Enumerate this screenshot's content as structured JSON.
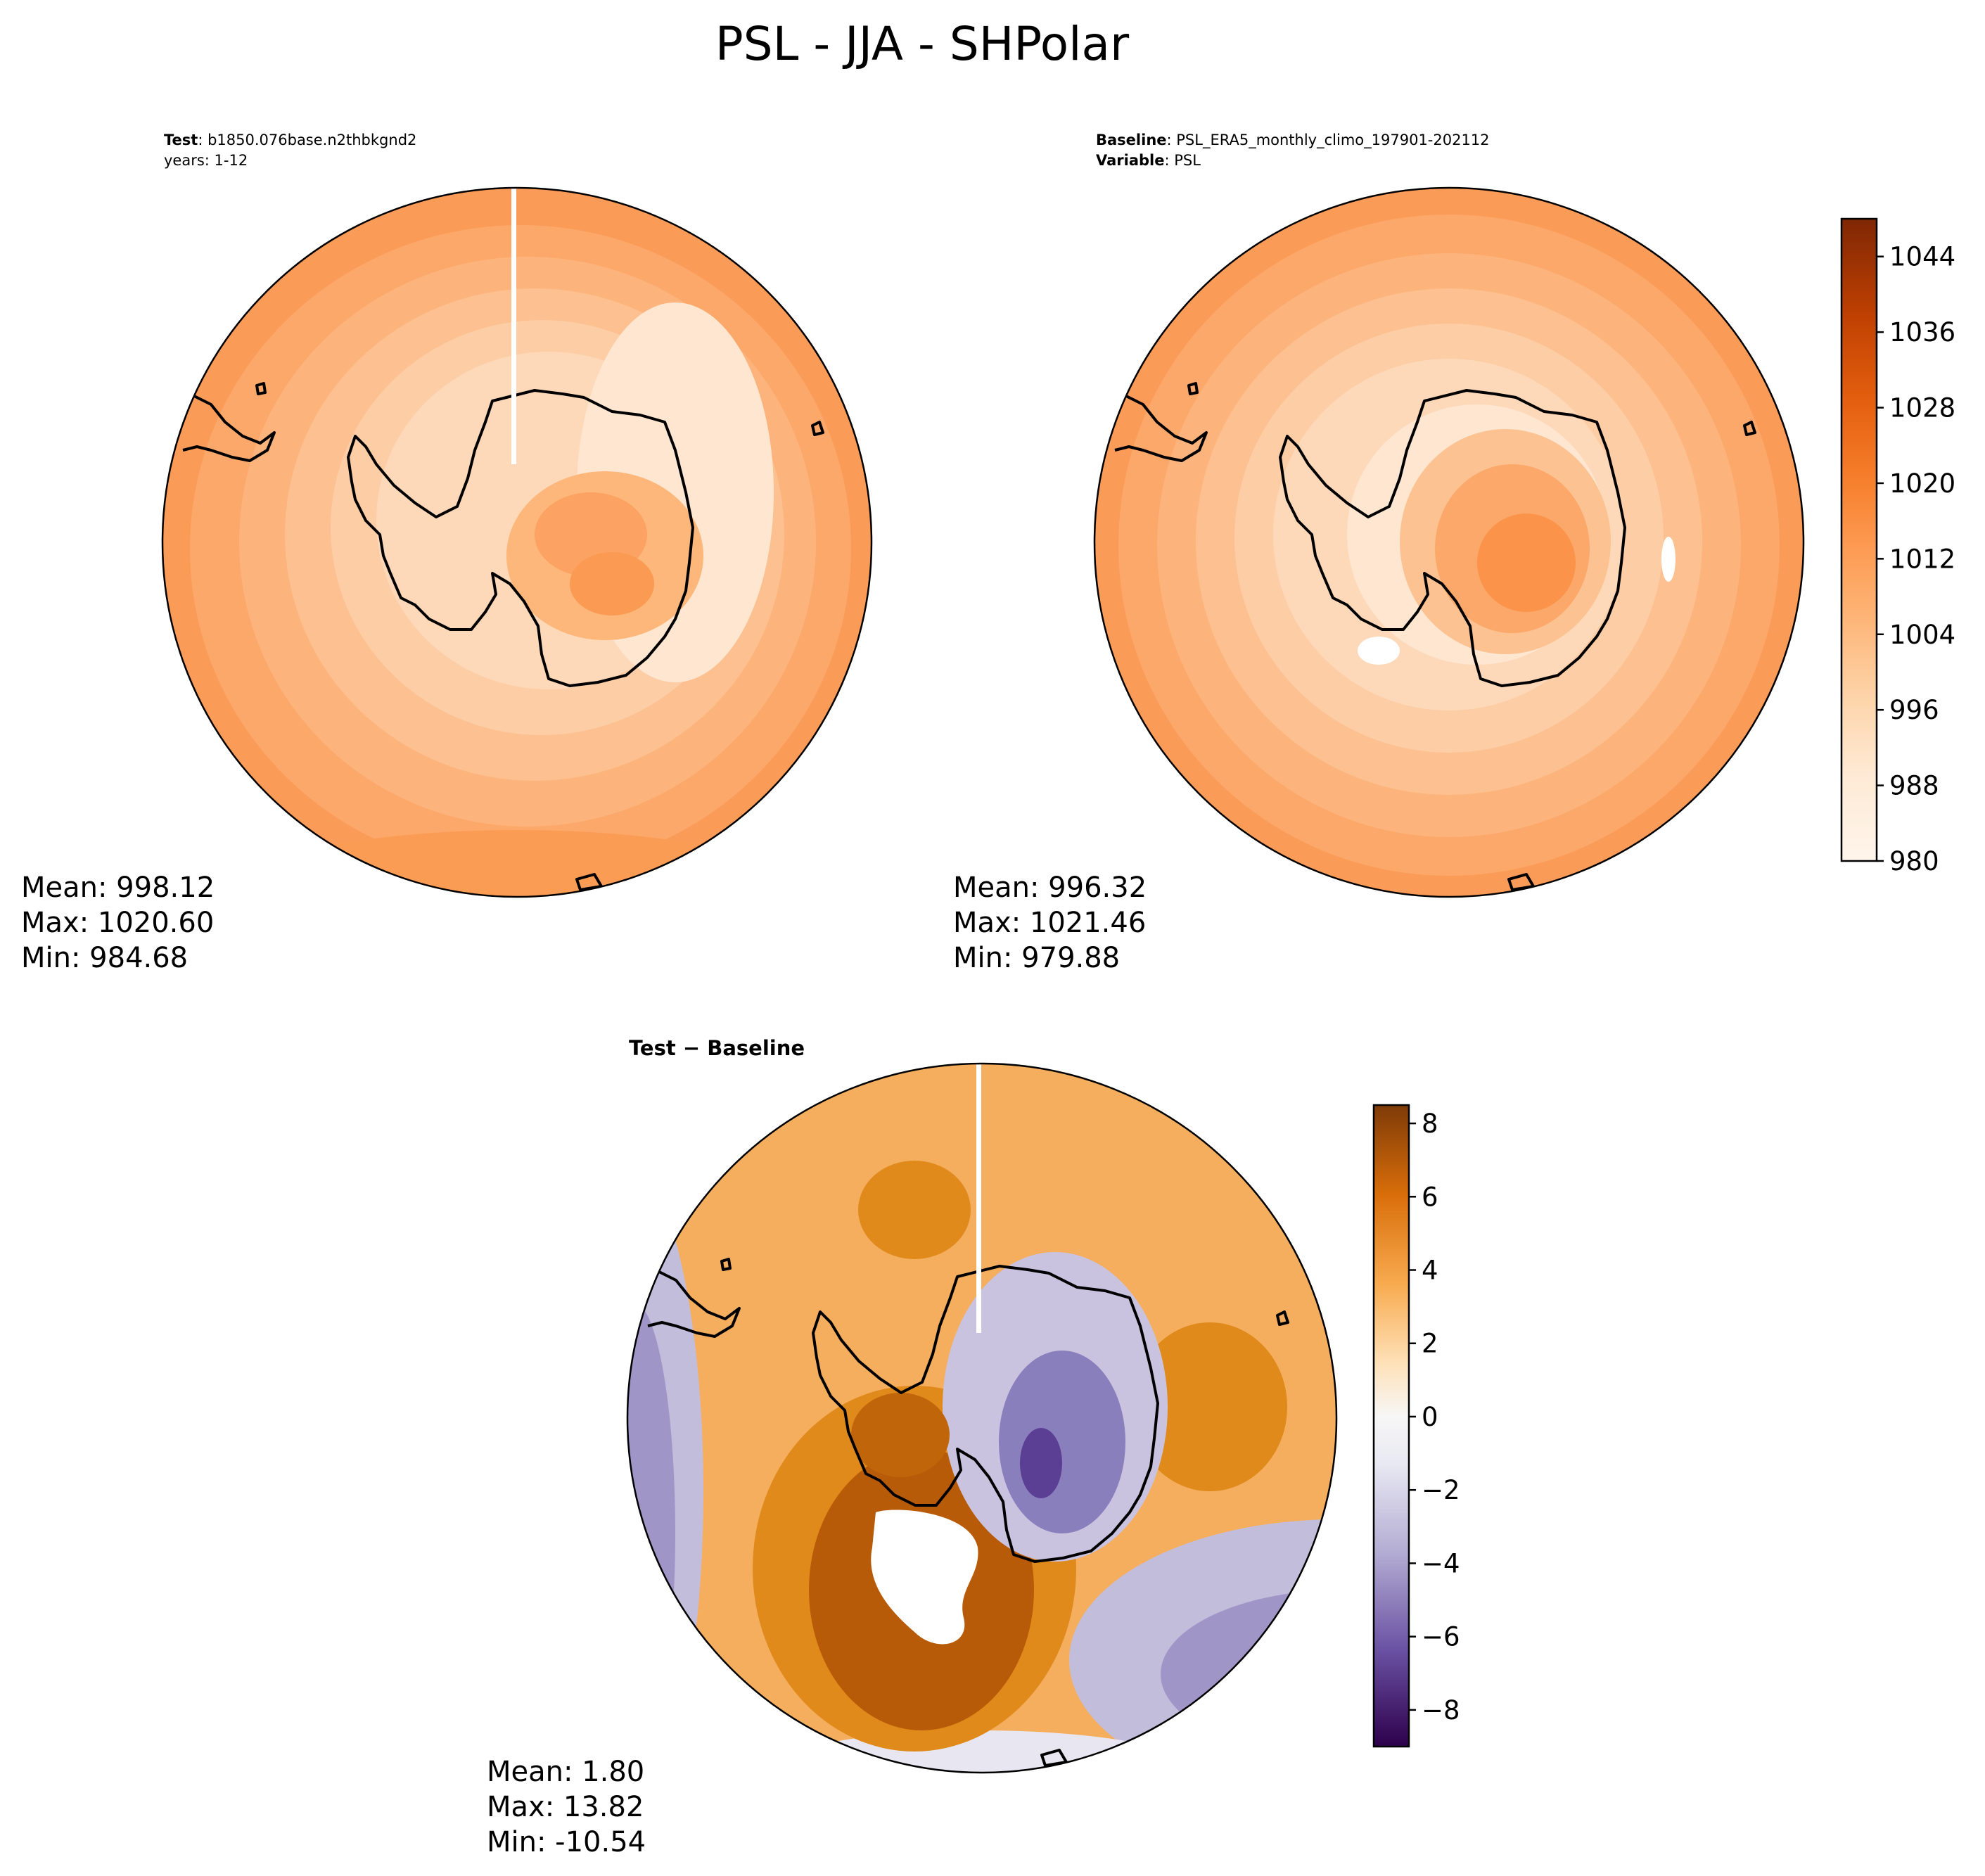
{
  "title": "PSL - JJA - SHPolar",
  "test_panel": {
    "label": "Test",
    "case": ": b1850.076base.n2thbkgnd2",
    "years": "years: 1-12",
    "stats": {
      "mean": "Mean: 998.12",
      "max": "Max: 1020.60",
      "min": "Min: 984.68"
    }
  },
  "baseline_panel": {
    "label": "Baseline",
    "case": ": PSL_ERA5_monthly_climo_197901-202112",
    "variable_label": "Variable",
    "variable": ": PSL",
    "stats": {
      "mean": "Mean: 996.32",
      "max": "Max: 1021.46",
      "min": "Min: 979.88"
    }
  },
  "diff_panel": {
    "title": "Test − Baseline",
    "stats": {
      "mean": "Mean:  1.80",
      "max": "Max: 13.82",
      "min": "Min: -10.54"
    }
  },
  "colorbar_psl": {
    "ticks": [
      "980",
      "988",
      "996",
      "1004",
      "1012",
      "1020",
      "1028",
      "1036",
      "1044"
    ],
    "range": [
      980,
      1048
    ],
    "colormap": "Oranges",
    "colors": [
      "#fff5eb",
      "#feeedc",
      "#fee6cc",
      "#fdd9b4",
      "#fdc794",
      "#fdb272",
      "#fd9d54",
      "#f98838",
      "#f3731f",
      "#e85c0d",
      "#d84603",
      "#bd3802",
      "#a03103",
      "#7f2704"
    ]
  },
  "colorbar_diff": {
    "ticks": [
      "8",
      "6",
      "4",
      "2",
      "0",
      "−2",
      "−4",
      "−6",
      "−8"
    ],
    "range": [
      -9,
      8.5
    ],
    "colormap": "PuOr_r"
  },
  "chart_data": [
    {
      "type": "heatmap",
      "title": "Test",
      "variable": "PSL",
      "season": "JJA",
      "region": "SHPolar",
      "mean": 998.12,
      "max": 1020.6,
      "min": 984.68
    },
    {
      "type": "heatmap",
      "title": "Baseline",
      "variable": "PSL",
      "season": "JJA",
      "region": "SHPolar",
      "mean": 996.32,
      "max": 1021.46,
      "min": 979.88
    },
    {
      "type": "heatmap",
      "title": "Test − Baseline",
      "variable": "PSL",
      "season": "JJA",
      "region": "SHPolar",
      "mean": 1.8,
      "max": 13.82,
      "min": -10.54
    }
  ]
}
